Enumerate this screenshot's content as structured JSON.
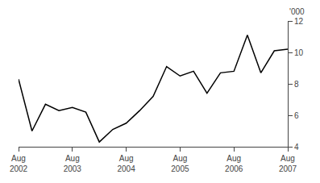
{
  "chart_data": {
    "type": "line",
    "categories": [
      "Aug\n2002",
      null,
      null,
      null,
      "Aug\n2003",
      null,
      null,
      null,
      "Aug\n2004",
      null,
      null,
      null,
      "Aug\n2005",
      null,
      null,
      null,
      "Aug\n2006",
      null,
      null,
      null,
      "Aug\n2007"
    ],
    "values": [
      8.3,
      5.0,
      6.7,
      6.3,
      6.5,
      6.2,
      4.3,
      5.1,
      5.5,
      6.3,
      7.2,
      9.1,
      8.5,
      8.8,
      7.4,
      8.7,
      8.8,
      11.1,
      8.7,
      10.1,
      10.2
    ],
    "color": "#000000",
    "ylabel": "'000",
    "ylim": [
      4,
      12
    ],
    "yticks": [
      4,
      6,
      8,
      10,
      12
    ],
    "grid": false
  }
}
